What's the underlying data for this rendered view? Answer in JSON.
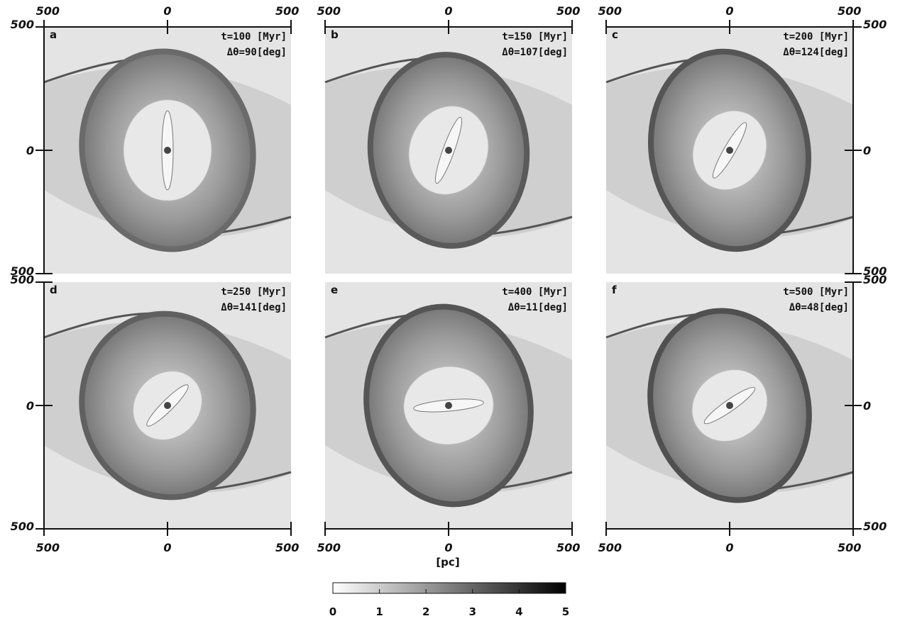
{
  "panels": [
    {
      "letter": "a",
      "time": "t=100 [Myr]",
      "angle": "Δθ=90[deg]"
    },
    {
      "letter": "b",
      "time": "t=150 [Myr]",
      "angle": "Δθ=107[deg]"
    },
    {
      "letter": "c",
      "time": "t=200 [Myr]",
      "angle": "Δθ=124[deg]"
    },
    {
      "letter": "d",
      "time": "t=250 [Myr]",
      "angle": "Δθ=141[deg]"
    },
    {
      "letter": "e",
      "time": "t=400 [Myr]",
      "angle": "Δθ=11[deg]"
    },
    {
      "letter": "f",
      "time": "t=500 [Myr]",
      "angle": "Δθ=48[deg]"
    }
  ],
  "axis_tick_labels": [
    "500",
    "0",
    "500"
  ],
  "axis_unit": "[pc]",
  "colorbar": {
    "lim": [
      0,
      5
    ],
    "ticks": [
      0,
      1,
      2,
      3,
      4,
      5
    ]
  }
}
